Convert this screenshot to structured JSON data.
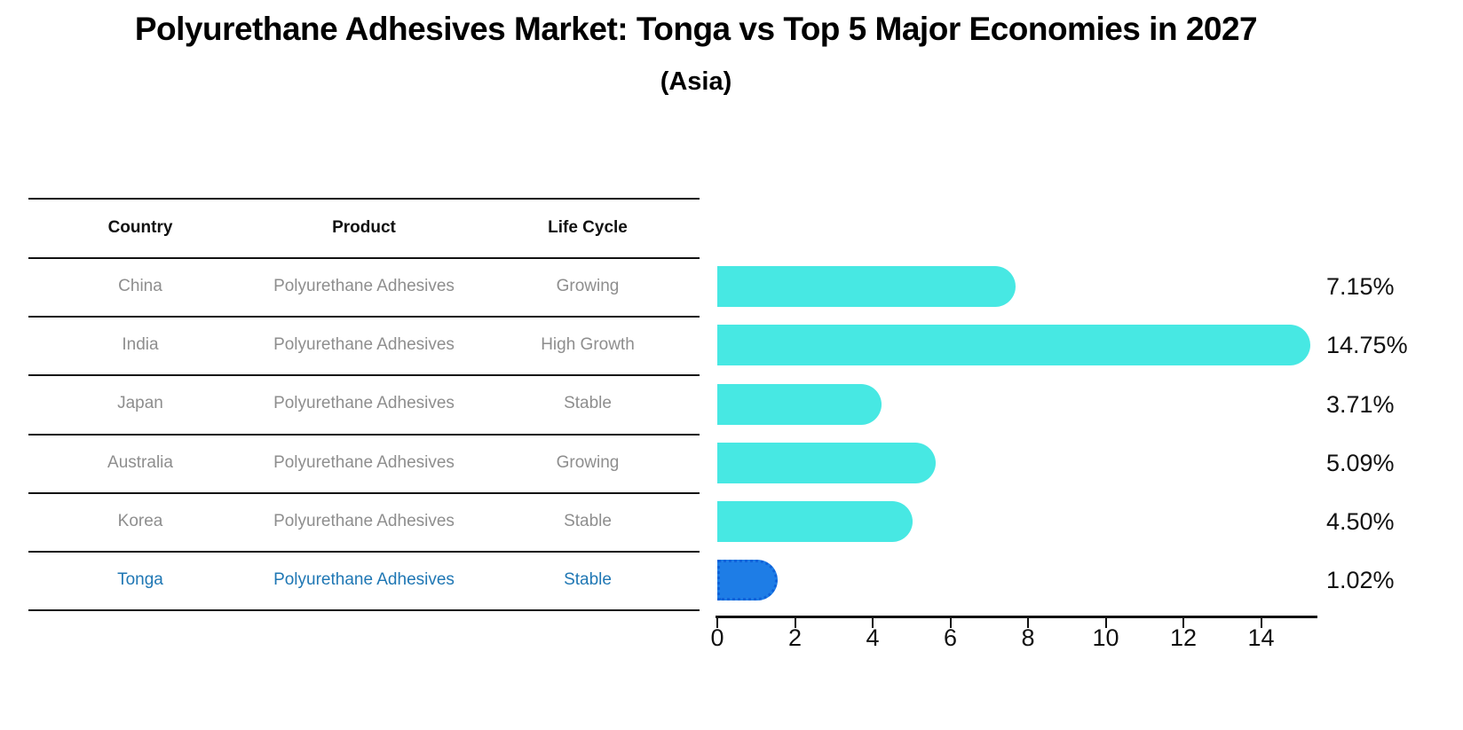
{
  "title": "Polyurethane Adhesives Market: Tonga vs Top 5 Major Economies in 2027",
  "subtitle": "(Asia)",
  "table": {
    "headers": [
      "Country",
      "Product",
      "Life Cycle"
    ],
    "rows": [
      {
        "country": "China",
        "product": "Polyurethane Adhesives",
        "life_cycle": "Growing",
        "highlight": false
      },
      {
        "country": "India",
        "product": "Polyurethane Adhesives",
        "life_cycle": "High Growth",
        "highlight": false
      },
      {
        "country": "Japan",
        "product": "Polyurethane Adhesives",
        "life_cycle": "Stable",
        "highlight": false
      },
      {
        "country": "Australia",
        "product": "Polyurethane Adhesives",
        "life_cycle": "Growing",
        "highlight": false
      },
      {
        "country": "Korea",
        "product": "Polyurethane Adhesives",
        "life_cycle": "Stable",
        "highlight": false
      },
      {
        "country": "Tonga",
        "product": "Polyurethane Adhesives",
        "life_cycle": "Stable",
        "highlight": true
      }
    ]
  },
  "chart_data": {
    "type": "bar",
    "orientation": "horizontal",
    "title": "Polyurethane Adhesives Market: Tonga vs Top 5 Major Economies in 2027",
    "subtitle": "(Asia)",
    "categories": [
      "China",
      "India",
      "Japan",
      "Australia",
      "Korea",
      "Tonga"
    ],
    "values": [
      7.15,
      14.75,
      3.71,
      5.09,
      4.5,
      1.02
    ],
    "value_labels": [
      "7.15%",
      "14.75%",
      "3.71%",
      "5.09%",
      "4.50%",
      "1.02%"
    ],
    "highlight_index": 5,
    "x_ticks": [
      0,
      2,
      4,
      6,
      8,
      10,
      12,
      14
    ],
    "xlim": [
      0,
      15.4
    ],
    "grid": false,
    "legend": false,
    "xlabel": "",
    "ylabel": ""
  },
  "colors": {
    "bar_default": "#47E8E3",
    "bar_highlight": "#1E7DE6",
    "bar_highlight_edge": "#0E62D9",
    "highlight_text": "#1f77b4",
    "row_text": "#8e8e8e",
    "header_text": "#111111",
    "axis": "#111111"
  }
}
